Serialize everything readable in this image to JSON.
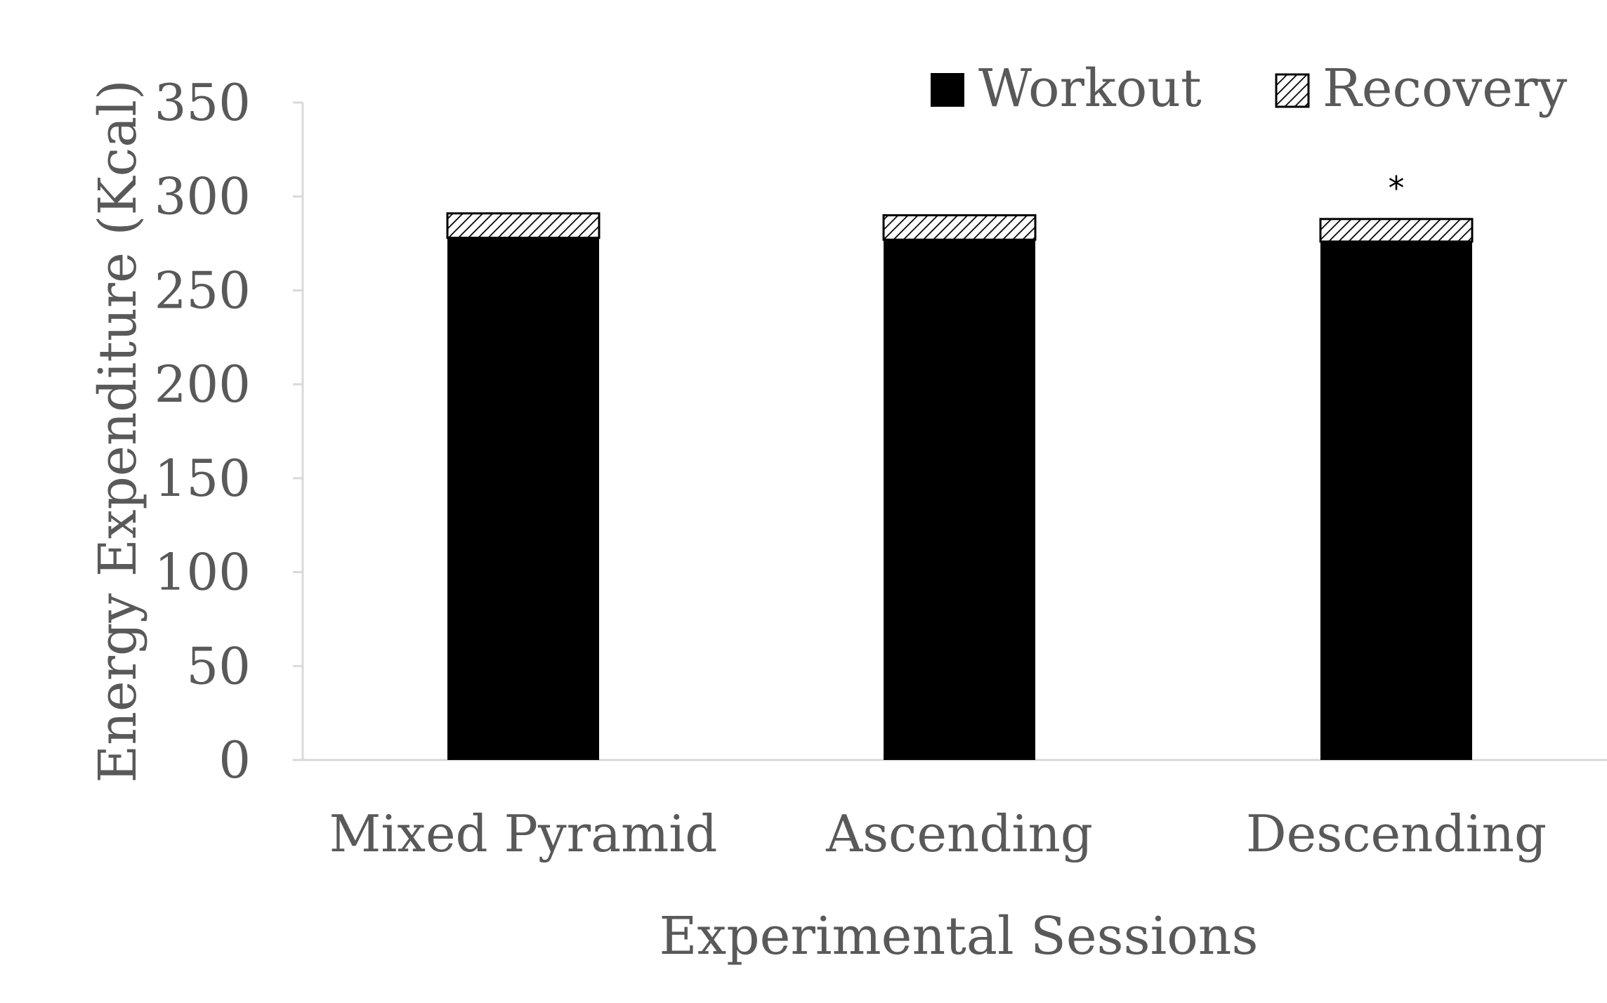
{
  "chart_data": {
    "type": "bar",
    "stacked": true,
    "title": "",
    "xlabel": "Experimental Sessions",
    "ylabel": "Energy Expenditure (Kcal)",
    "ylim": [
      0,
      350
    ],
    "yticks": [
      0,
      50,
      100,
      150,
      200,
      250,
      300,
      350
    ],
    "ytick_labels": [
      "0",
      "50",
      "100",
      "150",
      "200",
      "250",
      "300",
      "350"
    ],
    "grid": false,
    "legend_position": "top-right",
    "categories": [
      "Mixed Pyramid",
      "Ascending",
      "Descending"
    ],
    "series": [
      {
        "name": "Workout",
        "values": [
          278,
          277,
          276
        ],
        "fill": "solid",
        "color": "#000000"
      },
      {
        "name": "Recovery",
        "values": [
          13,
          13,
          12
        ],
        "fill": "hatched",
        "color": "#000000"
      }
    ],
    "annotations": [
      {
        "category": "Descending",
        "text": "*"
      }
    ]
  }
}
